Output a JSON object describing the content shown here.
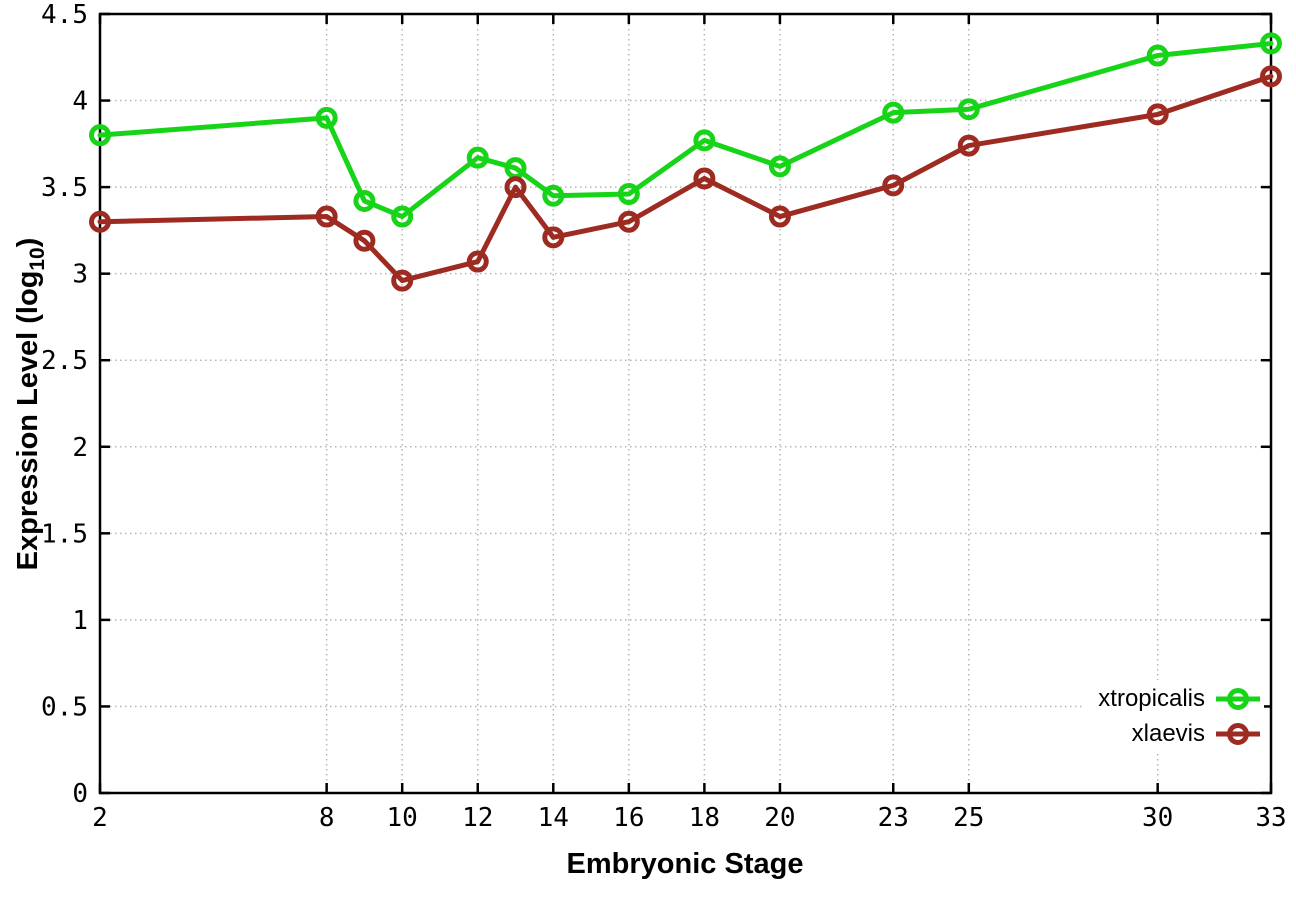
{
  "chart_data": {
    "type": "line",
    "title": "",
    "xlabel": "Embryonic Stage",
    "ylabel": "Expression Level (log10)",
    "ylabel_parts": [
      "Expression Level (log",
      "10",
      ")"
    ],
    "x": [
      2,
      8,
      9,
      10,
      12,
      13,
      14,
      16,
      18,
      20,
      23,
      25,
      30,
      33
    ],
    "xlim": [
      2,
      33
    ],
    "ylim": [
      0,
      4.5
    ],
    "xticks": [
      2,
      8,
      10,
      12,
      14,
      16,
      18,
      20,
      23,
      25,
      30,
      33
    ],
    "xtick_labels": [
      "2",
      "8",
      "10",
      "12",
      "14",
      "16",
      "18",
      "20",
      "23",
      "25",
      "30",
      "33"
    ],
    "yticks": [
      0,
      0.5,
      1,
      1.5,
      2,
      2.5,
      3,
      3.5,
      4,
      4.5
    ],
    "ytick_labels": [
      "0",
      "0.5",
      "1",
      "1.5",
      "2",
      "2.5",
      "3",
      "3.5",
      "4",
      "4.5"
    ],
    "grid": true,
    "legend_position": "bottom-right",
    "series": [
      {
        "name": "xtropicalis",
        "color": "#17d419",
        "marker": "open-circle",
        "values": [
          3.8,
          3.9,
          3.42,
          3.33,
          3.67,
          3.61,
          3.45,
          3.46,
          3.77,
          3.62,
          3.93,
          3.95,
          4.26,
          4.33
        ]
      },
      {
        "name": "xlaevis",
        "color": "#9e2b22",
        "marker": "open-circle",
        "values": [
          3.3,
          3.33,
          3.19,
          2.96,
          3.07,
          3.5,
          3.21,
          3.3,
          3.55,
          3.33,
          3.51,
          3.74,
          3.92,
          4.14
        ]
      }
    ],
    "colors": {
      "grid": "#b5b5b5",
      "axis": "#000000",
      "background": "#ffffff"
    }
  }
}
